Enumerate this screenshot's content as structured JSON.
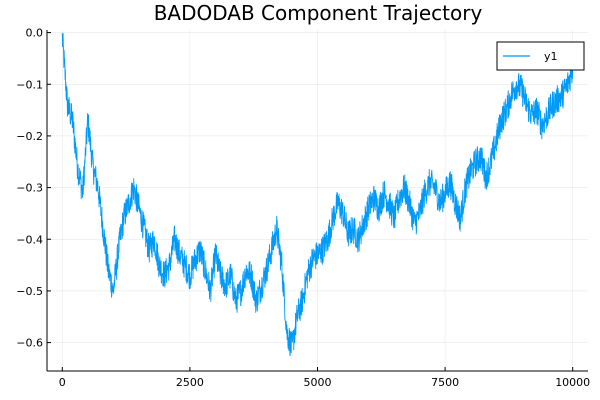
{
  "chart_data": {
    "type": "line",
    "title": "BADODAB Component Trajectory",
    "xlabel": "",
    "ylabel": "",
    "xlim": [
      -300,
      10300
    ],
    "ylim": [
      -0.655,
      0.005
    ],
    "xticks": [
      0,
      2500,
      5000,
      7500,
      10000
    ],
    "xtick_labels": [
      "0",
      "2500",
      "5000",
      "7500",
      "10000"
    ],
    "yticks": [
      0.0,
      -0.1,
      -0.2,
      -0.3,
      -0.4,
      -0.5,
      -0.6
    ],
    "ytick_labels": [
      "0.0",
      "−0.1",
      "−0.2",
      "−0.3",
      "−0.4",
      "−0.5",
      "−0.6"
    ],
    "grid": true,
    "legend_position": "top-right",
    "series": [
      {
        "name": "y1",
        "color": "#009af9",
        "noise_amplitude": 0.028,
        "points": [
          [
            0,
            -0.01
          ],
          [
            100,
            -0.14
          ],
          [
            200,
            -0.17
          ],
          [
            300,
            -0.26
          ],
          [
            400,
            -0.31
          ],
          [
            500,
            -0.17
          ],
          [
            600,
            -0.26
          ],
          [
            700,
            -0.3
          ],
          [
            800,
            -0.38
          ],
          [
            900,
            -0.46
          ],
          [
            1000,
            -0.5
          ],
          [
            1100,
            -0.42
          ],
          [
            1200,
            -0.36
          ],
          [
            1300,
            -0.33
          ],
          [
            1400,
            -0.3
          ],
          [
            1500,
            -0.34
          ],
          [
            1600,
            -0.38
          ],
          [
            1700,
            -0.42
          ],
          [
            1800,
            -0.4
          ],
          [
            1900,
            -0.45
          ],
          [
            2000,
            -0.47
          ],
          [
            2100,
            -0.45
          ],
          [
            2200,
            -0.4
          ],
          [
            2300,
            -0.43
          ],
          [
            2400,
            -0.45
          ],
          [
            2500,
            -0.47
          ],
          [
            2600,
            -0.44
          ],
          [
            2700,
            -0.42
          ],
          [
            2800,
            -0.46
          ],
          [
            2900,
            -0.5
          ],
          [
            3000,
            -0.43
          ],
          [
            3100,
            -0.47
          ],
          [
            3200,
            -0.49
          ],
          [
            3300,
            -0.47
          ],
          [
            3400,
            -0.52
          ],
          [
            3500,
            -0.5
          ],
          [
            3600,
            -0.46
          ],
          [
            3700,
            -0.47
          ],
          [
            3800,
            -0.52
          ],
          [
            3900,
            -0.49
          ],
          [
            4000,
            -0.46
          ],
          [
            4100,
            -0.42
          ],
          [
            4200,
            -0.38
          ],
          [
            4300,
            -0.45
          ],
          [
            4400,
            -0.58
          ],
          [
            4500,
            -0.61
          ],
          [
            4600,
            -0.55
          ],
          [
            4700,
            -0.52
          ],
          [
            4800,
            -0.47
          ],
          [
            4900,
            -0.44
          ],
          [
            5000,
            -0.43
          ],
          [
            5100,
            -0.42
          ],
          [
            5200,
            -0.4
          ],
          [
            5300,
            -0.36
          ],
          [
            5400,
            -0.33
          ],
          [
            5500,
            -0.35
          ],
          [
            5600,
            -0.39
          ],
          [
            5700,
            -0.38
          ],
          [
            5800,
            -0.4
          ],
          [
            5900,
            -0.37
          ],
          [
            6000,
            -0.34
          ],
          [
            6100,
            -0.32
          ],
          [
            6200,
            -0.34
          ],
          [
            6300,
            -0.31
          ],
          [
            6400,
            -0.33
          ],
          [
            6500,
            -0.36
          ],
          [
            6600,
            -0.32
          ],
          [
            6700,
            -0.3
          ],
          [
            6800,
            -0.33
          ],
          [
            6900,
            -0.37
          ],
          [
            7000,
            -0.35
          ],
          [
            7100,
            -0.31
          ],
          [
            7200,
            -0.29
          ],
          [
            7300,
            -0.3
          ],
          [
            7400,
            -0.33
          ],
          [
            7500,
            -0.31
          ],
          [
            7600,
            -0.29
          ],
          [
            7700,
            -0.33
          ],
          [
            7800,
            -0.36
          ],
          [
            7900,
            -0.3
          ],
          [
            8000,
            -0.27
          ],
          [
            8100,
            -0.25
          ],
          [
            8200,
            -0.24
          ],
          [
            8300,
            -0.28
          ],
          [
            8400,
            -0.25
          ],
          [
            8500,
            -0.21
          ],
          [
            8600,
            -0.17
          ],
          [
            8700,
            -0.15
          ],
          [
            8800,
            -0.12
          ],
          [
            8900,
            -0.1
          ],
          [
            9000,
            -0.11
          ],
          [
            9100,
            -0.14
          ],
          [
            9200,
            -0.16
          ],
          [
            9300,
            -0.15
          ],
          [
            9400,
            -0.18
          ],
          [
            9500,
            -0.16
          ],
          [
            9600,
            -0.14
          ],
          [
            9700,
            -0.13
          ],
          [
            9800,
            -0.12
          ],
          [
            9900,
            -0.1
          ],
          [
            10000,
            -0.07
          ]
        ]
      }
    ]
  }
}
